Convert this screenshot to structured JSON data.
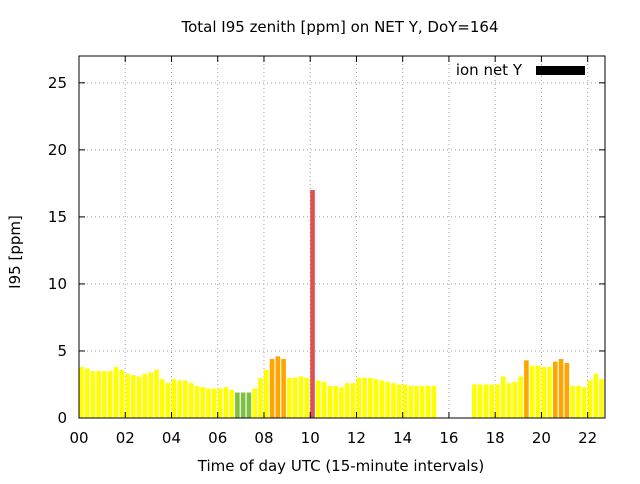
{
  "chart_data": {
    "type": "bar",
    "title": "Total I95 zenith [ppm] on NET Y, DoY=164",
    "xlabel": "Time of day UTC (15-minute intervals)",
    "ylabel": "I95 [ppm]",
    "xlim": [
      0,
      22.75
    ],
    "ylim": [
      0,
      27
    ],
    "x_ticks": [
      0,
      2,
      4,
      6,
      8,
      10,
      12,
      14,
      16,
      18,
      20,
      22
    ],
    "x_tick_labels": [
      "00",
      "02",
      "04",
      "06",
      "08",
      "10",
      "12",
      "14",
      "16",
      "18",
      "20",
      "22"
    ],
    "y_ticks": [
      0,
      5,
      10,
      15,
      20,
      25
    ],
    "y_tick_labels": [
      "0",
      "5",
      "10",
      "15",
      "20",
      "25"
    ],
    "grid": true,
    "legend": {
      "label": "ion net Y",
      "color": "#000000",
      "position": "top-right"
    },
    "bar_width_hours": 0.2,
    "colors": {
      "yellow": "#ffff00",
      "orange": "#ffa500",
      "green": "#7dc142",
      "red": "#e05050"
    },
    "bars": [
      {
        "t": 0.0,
        "v": 3.8,
        "c": "yellow"
      },
      {
        "t": 0.25,
        "v": 3.7,
        "c": "yellow"
      },
      {
        "t": 0.5,
        "v": 3.5,
        "c": "yellow"
      },
      {
        "t": 0.75,
        "v": 3.5,
        "c": "yellow"
      },
      {
        "t": 1.0,
        "v": 3.5,
        "c": "yellow"
      },
      {
        "t": 1.25,
        "v": 3.5,
        "c": "yellow"
      },
      {
        "t": 1.5,
        "v": 3.8,
        "c": "yellow"
      },
      {
        "t": 1.75,
        "v": 3.6,
        "c": "yellow"
      },
      {
        "t": 2.0,
        "v": 3.3,
        "c": "yellow"
      },
      {
        "t": 2.25,
        "v": 3.2,
        "c": "yellow"
      },
      {
        "t": 2.5,
        "v": 3.1,
        "c": "yellow"
      },
      {
        "t": 2.75,
        "v": 3.3,
        "c": "yellow"
      },
      {
        "t": 3.0,
        "v": 3.4,
        "c": "yellow"
      },
      {
        "t": 3.25,
        "v": 3.6,
        "c": "yellow"
      },
      {
        "t": 3.5,
        "v": 2.9,
        "c": "yellow"
      },
      {
        "t": 3.75,
        "v": 2.6,
        "c": "yellow"
      },
      {
        "t": 4.0,
        "v": 2.9,
        "c": "yellow"
      },
      {
        "t": 4.25,
        "v": 2.8,
        "c": "yellow"
      },
      {
        "t": 4.5,
        "v": 2.8,
        "c": "yellow"
      },
      {
        "t": 4.75,
        "v": 2.6,
        "c": "yellow"
      },
      {
        "t": 5.0,
        "v": 2.4,
        "c": "yellow"
      },
      {
        "t": 5.25,
        "v": 2.3,
        "c": "yellow"
      },
      {
        "t": 5.5,
        "v": 2.2,
        "c": "yellow"
      },
      {
        "t": 5.75,
        "v": 2.2,
        "c": "yellow"
      },
      {
        "t": 6.0,
        "v": 2.2,
        "c": "yellow"
      },
      {
        "t": 6.25,
        "v": 2.3,
        "c": "yellow"
      },
      {
        "t": 6.5,
        "v": 2.1,
        "c": "yellow"
      },
      {
        "t": 6.75,
        "v": 1.9,
        "c": "green"
      },
      {
        "t": 7.0,
        "v": 1.9,
        "c": "green"
      },
      {
        "t": 7.25,
        "v": 1.9,
        "c": "green"
      },
      {
        "t": 7.5,
        "v": 2.2,
        "c": "yellow"
      },
      {
        "t": 7.75,
        "v": 3.0,
        "c": "yellow"
      },
      {
        "t": 8.0,
        "v": 3.6,
        "c": "yellow"
      },
      {
        "t": 8.25,
        "v": 4.4,
        "c": "orange"
      },
      {
        "t": 8.5,
        "v": 4.6,
        "c": "orange"
      },
      {
        "t": 8.75,
        "v": 4.4,
        "c": "orange"
      },
      {
        "t": 9.0,
        "v": 3.0,
        "c": "yellow"
      },
      {
        "t": 9.25,
        "v": 3.0,
        "c": "yellow"
      },
      {
        "t": 9.5,
        "v": 3.1,
        "c": "yellow"
      },
      {
        "t": 9.75,
        "v": 3.0,
        "c": "yellow"
      },
      {
        "t": 10.0,
        "v": 17.0,
        "c": "red"
      },
      {
        "t": 10.25,
        "v": 2.8,
        "c": "yellow"
      },
      {
        "t": 10.5,
        "v": 2.7,
        "c": "yellow"
      },
      {
        "t": 10.75,
        "v": 2.4,
        "c": "yellow"
      },
      {
        "t": 11.0,
        "v": 2.4,
        "c": "yellow"
      },
      {
        "t": 11.25,
        "v": 2.3,
        "c": "yellow"
      },
      {
        "t": 11.5,
        "v": 2.6,
        "c": "yellow"
      },
      {
        "t": 11.75,
        "v": 2.6,
        "c": "yellow"
      },
      {
        "t": 12.0,
        "v": 3.0,
        "c": "yellow"
      },
      {
        "t": 12.25,
        "v": 3.0,
        "c": "yellow"
      },
      {
        "t": 12.5,
        "v": 3.0,
        "c": "yellow"
      },
      {
        "t": 12.75,
        "v": 2.9,
        "c": "yellow"
      },
      {
        "t": 13.0,
        "v": 2.8,
        "c": "yellow"
      },
      {
        "t": 13.25,
        "v": 2.7,
        "c": "yellow"
      },
      {
        "t": 13.5,
        "v": 2.6,
        "c": "yellow"
      },
      {
        "t": 13.75,
        "v": 2.5,
        "c": "yellow"
      },
      {
        "t": 14.0,
        "v": 2.5,
        "c": "yellow"
      },
      {
        "t": 14.25,
        "v": 2.4,
        "c": "yellow"
      },
      {
        "t": 14.5,
        "v": 2.4,
        "c": "yellow"
      },
      {
        "t": 14.75,
        "v": 2.4,
        "c": "yellow"
      },
      {
        "t": 15.0,
        "v": 2.4,
        "c": "yellow"
      },
      {
        "t": 15.25,
        "v": 2.4,
        "c": "yellow"
      },
      {
        "t": 17.0,
        "v": 2.5,
        "c": "yellow"
      },
      {
        "t": 17.25,
        "v": 2.5,
        "c": "yellow"
      },
      {
        "t": 17.5,
        "v": 2.5,
        "c": "yellow"
      },
      {
        "t": 17.75,
        "v": 2.5,
        "c": "yellow"
      },
      {
        "t": 18.0,
        "v": 2.5,
        "c": "yellow"
      },
      {
        "t": 18.25,
        "v": 3.1,
        "c": "yellow"
      },
      {
        "t": 18.5,
        "v": 2.6,
        "c": "yellow"
      },
      {
        "t": 18.75,
        "v": 2.7,
        "c": "yellow"
      },
      {
        "t": 19.0,
        "v": 3.1,
        "c": "yellow"
      },
      {
        "t": 19.25,
        "v": 4.3,
        "c": "orange"
      },
      {
        "t": 19.5,
        "v": 3.9,
        "c": "yellow"
      },
      {
        "t": 19.75,
        "v": 3.9,
        "c": "yellow"
      },
      {
        "t": 20.0,
        "v": 3.8,
        "c": "yellow"
      },
      {
        "t": 20.25,
        "v": 3.8,
        "c": "yellow"
      },
      {
        "t": 20.5,
        "v": 4.2,
        "c": "orange"
      },
      {
        "t": 20.75,
        "v": 4.4,
        "c": "orange"
      },
      {
        "t": 21.0,
        "v": 4.1,
        "c": "orange"
      },
      {
        "t": 21.25,
        "v": 2.4,
        "c": "yellow"
      },
      {
        "t": 21.5,
        "v": 2.4,
        "c": "yellow"
      },
      {
        "t": 21.75,
        "v": 2.3,
        "c": "yellow"
      },
      {
        "t": 22.0,
        "v": 2.8,
        "c": "yellow"
      },
      {
        "t": 22.25,
        "v": 3.3,
        "c": "yellow"
      },
      {
        "t": 22.5,
        "v": 2.9,
        "c": "yellow"
      }
    ]
  }
}
